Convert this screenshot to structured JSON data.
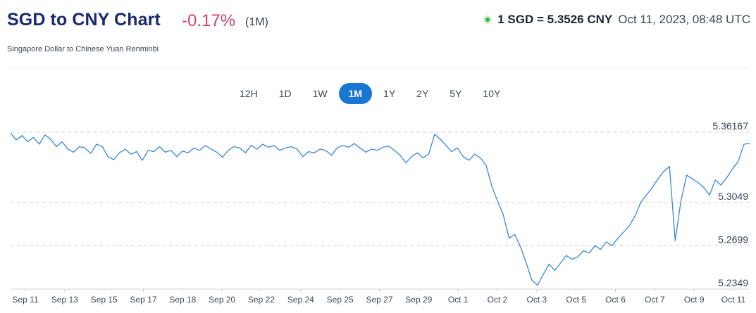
{
  "header": {
    "title": "SGD to CNY Chart",
    "change": "-0.17%",
    "change_period": "(1M)",
    "subtitle": "Singapore Dollar to Chinese Yuan Renminbi",
    "rate": "1 SGD = 5.3526 CNY",
    "timestamp": "Oct 11, 2023, 08:48 UTC"
  },
  "periods": [
    {
      "label": "12H",
      "active": false
    },
    {
      "label": "1D",
      "active": false
    },
    {
      "label": "1W",
      "active": false
    },
    {
      "label": "1M",
      "active": true
    },
    {
      "label": "1Y",
      "active": false
    },
    {
      "label": "2Y",
      "active": false
    },
    {
      "label": "5Y",
      "active": false
    },
    {
      "label": "10Y",
      "active": false
    }
  ],
  "colors": {
    "line": "#3a87d8",
    "active": "#1976d2",
    "negative": "#c8476b",
    "title": "#1a2a6c"
  },
  "chart_data": {
    "type": "line",
    "x_labels": [
      "Sep 11",
      "Sep 13",
      "Sep 15",
      "Sep 17",
      "Sep 18",
      "Sep 20",
      "Sep 22",
      "Sep 24",
      "Sep 25",
      "Sep 27",
      "Sep 29",
      "Oct 1",
      "Oct 2",
      "Oct 3",
      "Oct 5",
      "Oct 6",
      "Oct 7",
      "Oct 9",
      "Oct 11"
    ],
    "y_ticks": [
      5.2349,
      5.2699,
      5.3049,
      5.36167
    ],
    "y_tick_labels": [
      "5.2349",
      "5.2699",
      "5.3049",
      "5.36167"
    ],
    "ylim": [
      5.2349,
      5.36167
    ],
    "grid": "horizontal-dashed",
    "points": [
      [
        0,
        5.361
      ],
      [
        1,
        5.3555
      ],
      [
        2,
        5.359
      ],
      [
        3,
        5.354
      ],
      [
        4,
        5.3575
      ],
      [
        5,
        5.352
      ],
      [
        6,
        5.3595
      ],
      [
        7,
        5.356
      ],
      [
        8,
        5.35
      ],
      [
        9,
        5.354
      ],
      [
        10,
        5.348
      ],
      [
        11,
        5.3455
      ],
      [
        12,
        5.35
      ],
      [
        13,
        5.349
      ],
      [
        14,
        5.3445
      ],
      [
        15,
        5.352
      ],
      [
        16,
        5.35
      ],
      [
        17,
        5.342
      ],
      [
        18,
        5.3395
      ],
      [
        19,
        5.345
      ],
      [
        20,
        5.348
      ],
      [
        21,
        5.344
      ],
      [
        22,
        5.346
      ],
      [
        23,
        5.339
      ],
      [
        24,
        5.347
      ],
      [
        25,
        5.346
      ],
      [
        26,
        5.35
      ],
      [
        27,
        5.3455
      ],
      [
        28,
        5.347
      ],
      [
        29,
        5.342
      ],
      [
        30,
        5.3465
      ],
      [
        31,
        5.345
      ],
      [
        32,
        5.349
      ],
      [
        33,
        5.347
      ],
      [
        34,
        5.351
      ],
      [
        35,
        5.348
      ],
      [
        36,
        5.3455
      ],
      [
        37,
        5.3415
      ],
      [
        38,
        5.347
      ],
      [
        39,
        5.35
      ],
      [
        40,
        5.349
      ],
      [
        41,
        5.345
      ],
      [
        42,
        5.351
      ],
      [
        43,
        5.348
      ],
      [
        44,
        5.352
      ],
      [
        45,
        5.3495
      ],
      [
        46,
        5.351
      ],
      [
        47,
        5.347
      ],
      [
        48,
        5.349
      ],
      [
        49,
        5.35
      ],
      [
        50,
        5.348
      ],
      [
        51,
        5.342
      ],
      [
        52,
        5.346
      ],
      [
        53,
        5.345
      ],
      [
        54,
        5.348
      ],
      [
        55,
        5.347
      ],
      [
        56,
        5.343
      ],
      [
        57,
        5.349
      ],
      [
        58,
        5.351
      ],
      [
        59,
        5.3495
      ],
      [
        60,
        5.3525
      ],
      [
        61,
        5.349
      ],
      [
        62,
        5.3455
      ],
      [
        63,
        5.348
      ],
      [
        64,
        5.347
      ],
      [
        65,
        5.3495
      ],
      [
        66,
        5.3505
      ],
      [
        67,
        5.347
      ],
      [
        68,
        5.343
      ],
      [
        69,
        5.337
      ],
      [
        70,
        5.342
      ],
      [
        71,
        5.345
      ],
      [
        72,
        5.341
      ],
      [
        73,
        5.344
      ],
      [
        74,
        5.36
      ],
      [
        75,
        5.356
      ],
      [
        76,
        5.351
      ],
      [
        77,
        5.346
      ],
      [
        78,
        5.349
      ],
      [
        79,
        5.342
      ],
      [
        80,
        5.339
      ],
      [
        81,
        5.344
      ],
      [
        82,
        5.341
      ],
      [
        83,
        5.335
      ],
      [
        84,
        5.318
      ],
      [
        85,
        5.306
      ],
      [
        86,
        5.295
      ],
      [
        87,
        5.276
      ],
      [
        88,
        5.279
      ],
      [
        89,
        5.269
      ],
      [
        90,
        5.256
      ],
      [
        91,
        5.242
      ],
      [
        92,
        5.238
      ],
      [
        93,
        5.247
      ],
      [
        94,
        5.255
      ],
      [
        95,
        5.25
      ],
      [
        96,
        5.256
      ],
      [
        97,
        5.262
      ],
      [
        98,
        5.259
      ],
      [
        99,
        5.261
      ],
      [
        100,
        5.266
      ],
      [
        101,
        5.264
      ],
      [
        102,
        5.27
      ],
      [
        103,
        5.267
      ],
      [
        104,
        5.273
      ],
      [
        105,
        5.27
      ],
      [
        106,
        5.276
      ],
      [
        107,
        5.281
      ],
      [
        108,
        5.286
      ],
      [
        109,
        5.294
      ],
      [
        110,
        5.305
      ],
      [
        111,
        5.311
      ],
      [
        112,
        5.317
      ],
      [
        113,
        5.324
      ],
      [
        114,
        5.33
      ],
      [
        115,
        5.334
      ],
      [
        116,
        5.274
      ],
      [
        117,
        5.306
      ],
      [
        118,
        5.327
      ],
      [
        119,
        5.324
      ],
      [
        120,
        5.321
      ],
      [
        121,
        5.317
      ],
      [
        122,
        5.311
      ],
      [
        123,
        5.323
      ],
      [
        124,
        5.319
      ],
      [
        125,
        5.325
      ],
      [
        126,
        5.332
      ],
      [
        127,
        5.338
      ],
      [
        128,
        5.352
      ],
      [
        129,
        5.3526
      ]
    ]
  }
}
